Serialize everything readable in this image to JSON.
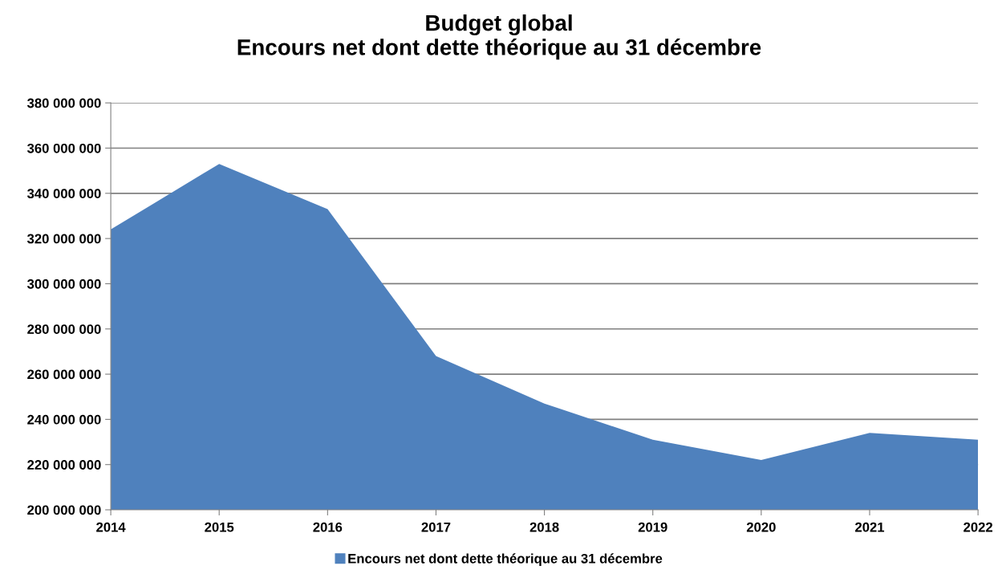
{
  "chart_data": {
    "type": "area",
    "title": "Budget global\nEncours net dont dette théorique au 31 décembre",
    "categories": [
      "2014",
      "2015",
      "2016",
      "2017",
      "2018",
      "2019",
      "2020",
      "2021",
      "2022"
    ],
    "series": [
      {
        "name": "Encours net dont dette théorique au 31 décembre",
        "color": "#4f81bd",
        "values": [
          324000000,
          353000000,
          333000000,
          268000000,
          247000000,
          231000000,
          222000000,
          234000000,
          231000000
        ]
      }
    ],
    "ylim": [
      200000000,
      380000000
    ],
    "yticks": [
      {
        "value": 200000000,
        "label": "200 000 000"
      },
      {
        "value": 220000000,
        "label": "220 000 000"
      },
      {
        "value": 240000000,
        "label": "240 000 000"
      },
      {
        "value": 260000000,
        "label": "260 000 000"
      },
      {
        "value": 280000000,
        "label": "280 000 000"
      },
      {
        "value": 300000000,
        "label": "300 000 000"
      },
      {
        "value": 320000000,
        "label": "320 000 000"
      },
      {
        "value": 340000000,
        "label": "340 000 000"
      },
      {
        "value": 360000000,
        "label": "360 000 000"
      },
      {
        "value": 380000000,
        "label": "380 000 000"
      }
    ],
    "grid": "y",
    "legend": "bottom"
  }
}
